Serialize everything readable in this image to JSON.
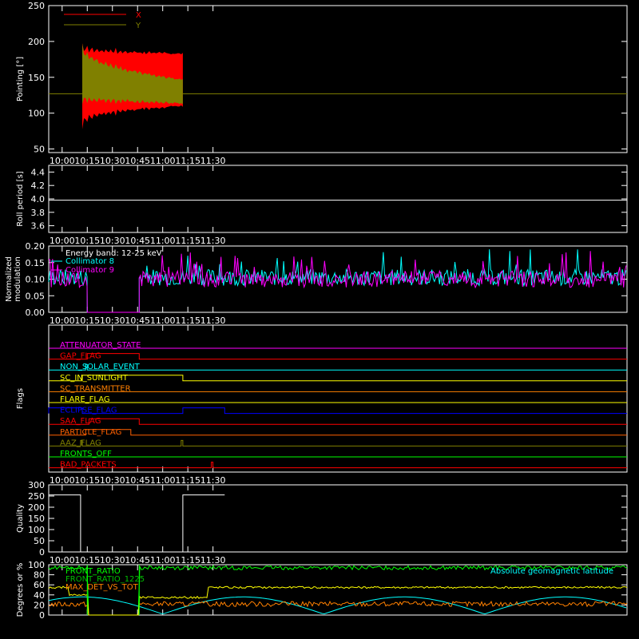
{
  "chart_data": [
    {
      "type": "line",
      "ylabel": "Pointing [°]",
      "yticks": [
        "250",
        "200",
        "150",
        "100",
        "50"
      ],
      "xticks": [
        "10:00",
        "10:15",
        "10:30",
        "10:45",
        "11:00",
        "11:15",
        "11:30"
      ],
      "ylim": [
        45,
        250
      ],
      "series": [
        {
          "name": "X",
          "color": "#ff0000",
          "baseline": 127,
          "active": [
            "10:12",
            "11:12"
          ],
          "envelope_start": [
            75,
            200
          ],
          "envelope_end": [
            108,
            185
          ]
        },
        {
          "name": "Y",
          "color": "#808000",
          "baseline": 127,
          "active": [
            "10:12",
            "11:12"
          ],
          "envelope_start": [
            110,
            200
          ],
          "envelope_end": [
            112,
            148
          ]
        }
      ],
      "legend": "top-left"
    },
    {
      "type": "line",
      "ylabel": "Roll period [s]",
      "yticks": [
        "4.4",
        "4.2",
        "4.0",
        "3.8",
        "3.6"
      ],
      "xticks": [
        "10:00",
        "10:15",
        "10:30",
        "10:45",
        "11:00",
        "11:15",
        "11:30"
      ],
      "ylim": [
        3.5,
        4.5
      ],
      "series": [
        {
          "color": "#ffffff",
          "value": 3.98
        }
      ]
    },
    {
      "type": "line",
      "ylabel": "Normalized modulation",
      "yticks": [
        "0.20",
        "0.15",
        "0.10",
        "0.05",
        "0.00"
      ],
      "xticks": [
        "10:00",
        "10:15",
        "10:30",
        "10:45",
        "11:00",
        "11:15",
        "11:30"
      ],
      "ylim": [
        0,
        0.2
      ],
      "annotations": [
        "Energy band: 12-25 keV"
      ],
      "series": [
        {
          "name": "Collimator 8",
          "color": "#00ffff",
          "mean": 0.105,
          "noise_until": "10:15",
          "noise_from": "10:46",
          "zero_range": [
            "10:15",
            "10:46"
          ]
        },
        {
          "name": "Collimator 9",
          "color": "#ff00ff",
          "mean": 0.1,
          "noise_until": "10:15",
          "noise_from": "10:46",
          "zero_range": [
            "10:15",
            "10:46"
          ]
        }
      ]
    },
    {
      "type": "flags",
      "ylabel": "Flags",
      "xticks": [
        "10:00",
        "10:15",
        "10:30",
        "10:45",
        "11:00",
        "11:15",
        "11:30"
      ],
      "flags": [
        {
          "name": "ATTENUATOR_STATE",
          "color": "#ff00ff",
          "on": []
        },
        {
          "name": "GAP_FLAG",
          "color": "#ff0000",
          "on": [
            [
              "10:15",
              "10:46"
            ]
          ]
        },
        {
          "name": "NON_SOLAR_EVENT",
          "color": "#00ffff",
          "on": [
            [
              "10:14",
              "10:15"
            ]
          ]
        },
        {
          "name": "SC_IN_SUNLIGHT",
          "color": "#ffff00",
          "on": [
            [
              "10:12",
              "11:12"
            ]
          ]
        },
        {
          "name": "SC_TRANSMITTER",
          "color": "#ff8000",
          "on": []
        },
        {
          "name": "FLARE_FLAG",
          "color": "#ffff00",
          "on": []
        },
        {
          "name": "ECLIPSE_FLAG",
          "color": "#0000ff",
          "on": [
            [
              "09:52",
              "10:12"
            ],
            [
              "11:12",
              "11:37"
            ]
          ]
        },
        {
          "name": "SAA_FLAG",
          "color": "#ff0000",
          "on": [
            [
              "10:16",
              "10:46"
            ]
          ]
        },
        {
          "name": "PARTICLE_FLAG",
          "color": "#ff6000",
          "on": [
            [
              "10:14",
              "10:41"
            ]
          ]
        },
        {
          "name": "AAZ_FLAG",
          "color": "#808000",
          "on": [
            [
              "10:11",
              "10:12"
            ],
            [
              "11:11",
              "11:12"
            ]
          ]
        },
        {
          "name": "FRONTS_OFF",
          "color": "#00ff00",
          "on": []
        },
        {
          "name": "BAD_PACKETS",
          "color": "#ff0000",
          "on": [
            [
              "11:29",
              "11:29"
            ]
          ]
        }
      ]
    },
    {
      "type": "line",
      "ylabel": "Quality",
      "yticks": [
        "300",
        "250",
        "200",
        "150",
        "100",
        "50",
        "0"
      ],
      "xticks": [
        "10:00",
        "10:15",
        "10:30",
        "10:45",
        "11:00",
        "11:15",
        "11:30"
      ],
      "ylim": [
        0,
        300
      ],
      "series": [
        {
          "color": "#ffffff",
          "segments": [
            [
              "09:52",
              "10:11",
              255
            ],
            [
              "10:11",
              "11:12",
              0
            ],
            [
              "11:12",
              "11:37",
              255
            ]
          ]
        }
      ]
    },
    {
      "type": "line",
      "ylabel": "Degrees or %",
      "yticks": [
        "100",
        "80",
        "60",
        "40",
        "20",
        "0"
      ],
      "ylim": [
        0,
        100
      ],
      "series": [
        {
          "name": "FRONT_RATIO",
          "color": "#00ff00"
        },
        {
          "name": "FRONT_RATIO_1225",
          "color": "#00c000"
        },
        {
          "name": "MAX_DET_VS_TOT",
          "color": "#ff8000"
        },
        {
          "name": "Absolute geomagnetic latitude",
          "color": "#00ffff"
        }
      ]
    }
  ]
}
